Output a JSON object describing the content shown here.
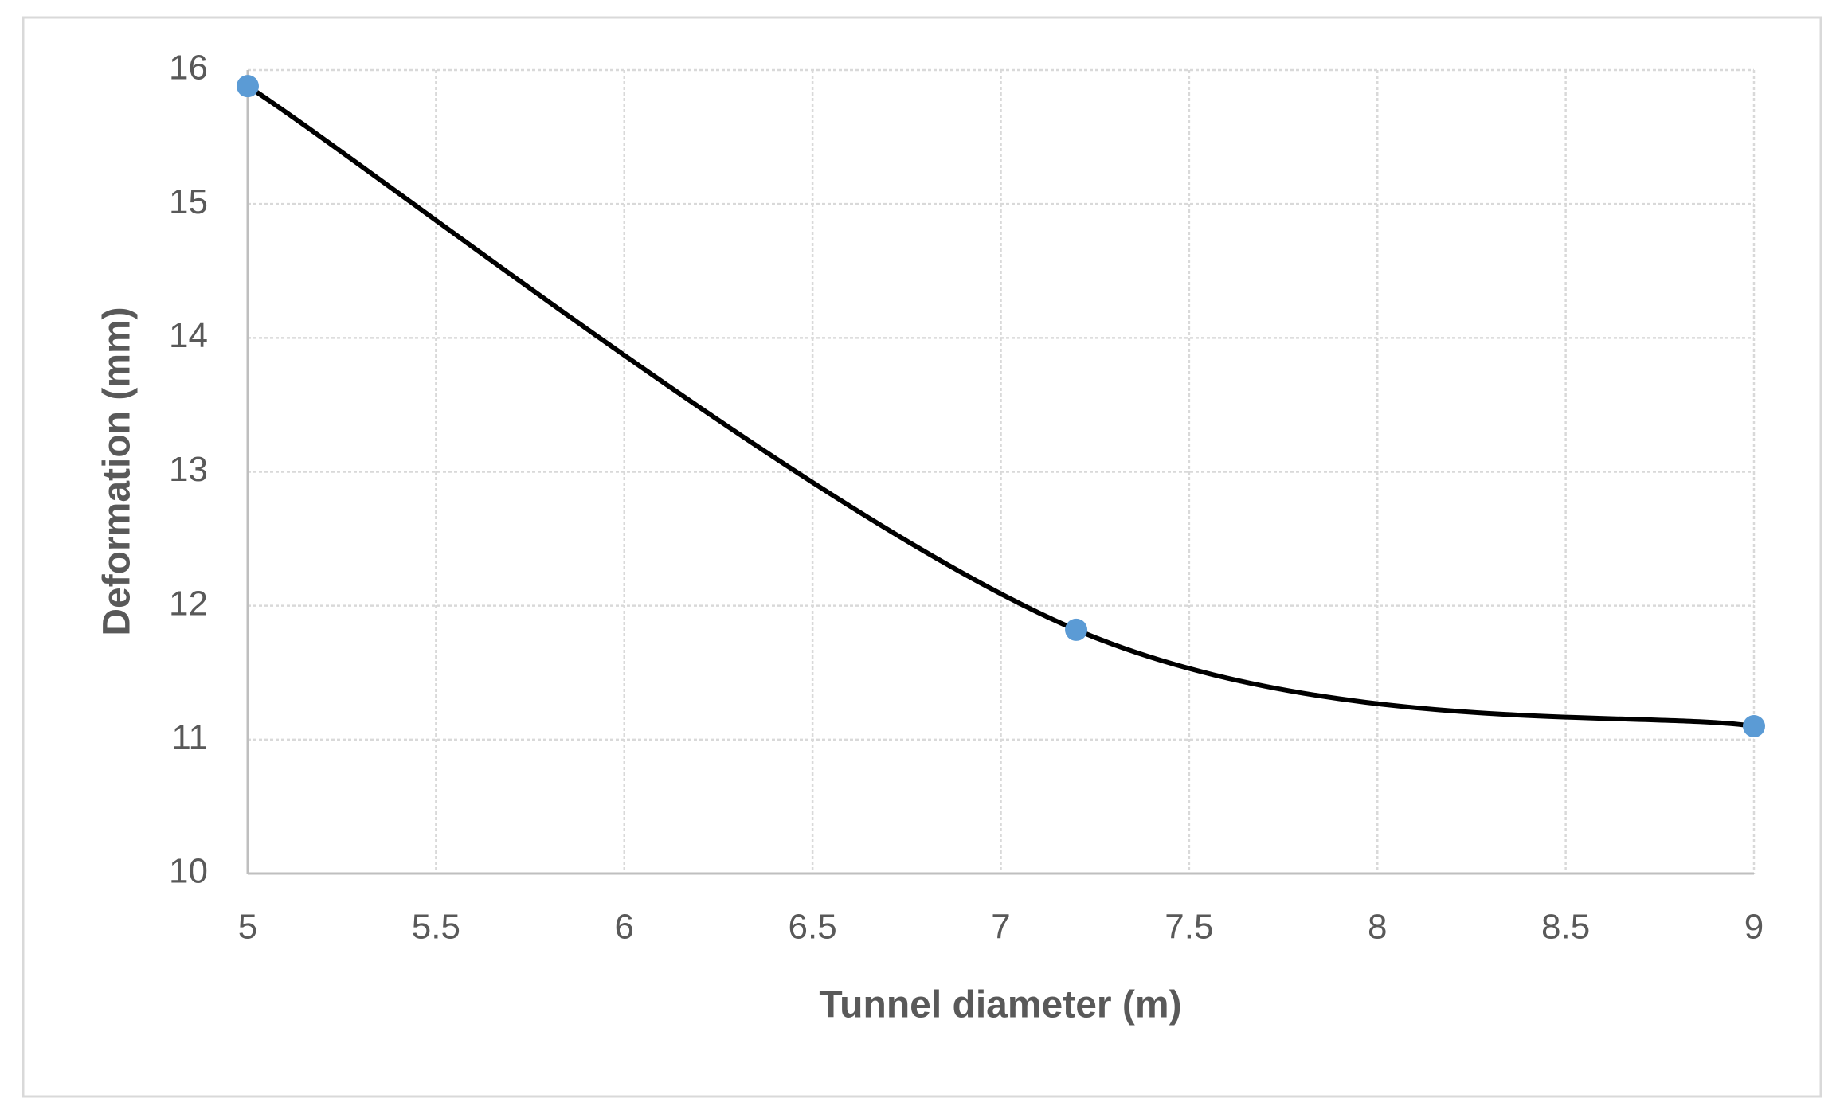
{
  "chart_data": {
    "type": "scatter",
    "x_label": "Tunnel diameter (m)",
    "y_label": "Deformation (mm)",
    "x": [
      5,
      7.2,
      9
    ],
    "values": [
      15.88,
      11.82,
      11.1
    ],
    "line_color": "#000000",
    "marker_color": "#5b9bd5",
    "smooth": true,
    "xlim": [
      5,
      9
    ],
    "xticks": [
      5,
      5.5,
      6,
      6.5,
      7,
      7.5,
      8,
      8.5,
      9
    ],
    "ylim": [
      10,
      16
    ],
    "yticks": [
      10,
      11,
      12,
      13,
      14,
      15,
      16
    ],
    "grid": true
  }
}
